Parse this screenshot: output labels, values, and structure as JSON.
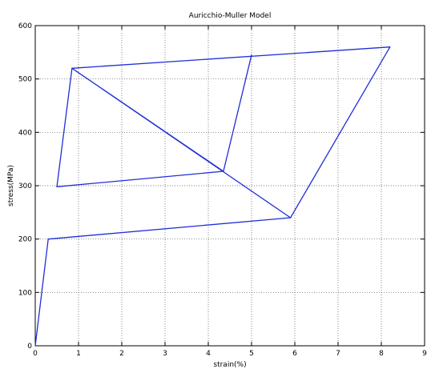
{
  "chart_data": {
    "type": "line",
    "title": "Auricchio-Muller Model",
    "xlabel": "strain(%)",
    "ylabel": "stress(MPa)",
    "xlim": [
      0,
      9
    ],
    "ylim": [
      0,
      600
    ],
    "xticks": [
      0,
      1,
      2,
      3,
      4,
      5,
      6,
      7,
      8,
      9
    ],
    "yticks": [
      0,
      100,
      200,
      300,
      400,
      500,
      600
    ],
    "grid": true,
    "series": [
      {
        "color": "#1f2fd6",
        "points": [
          [
            0,
            0
          ],
          [
            0.3,
            200
          ],
          [
            5.9,
            240
          ],
          [
            8.2,
            560
          ],
          [
            0.85,
            520
          ],
          [
            0.5,
            298
          ],
          [
            4.35,
            327
          ],
          [
            5.0,
            545
          ],
          [
            4.35,
            327
          ],
          [
            0.85,
            520
          ],
          [
            5.9,
            240
          ]
        ]
      }
    ]
  }
}
